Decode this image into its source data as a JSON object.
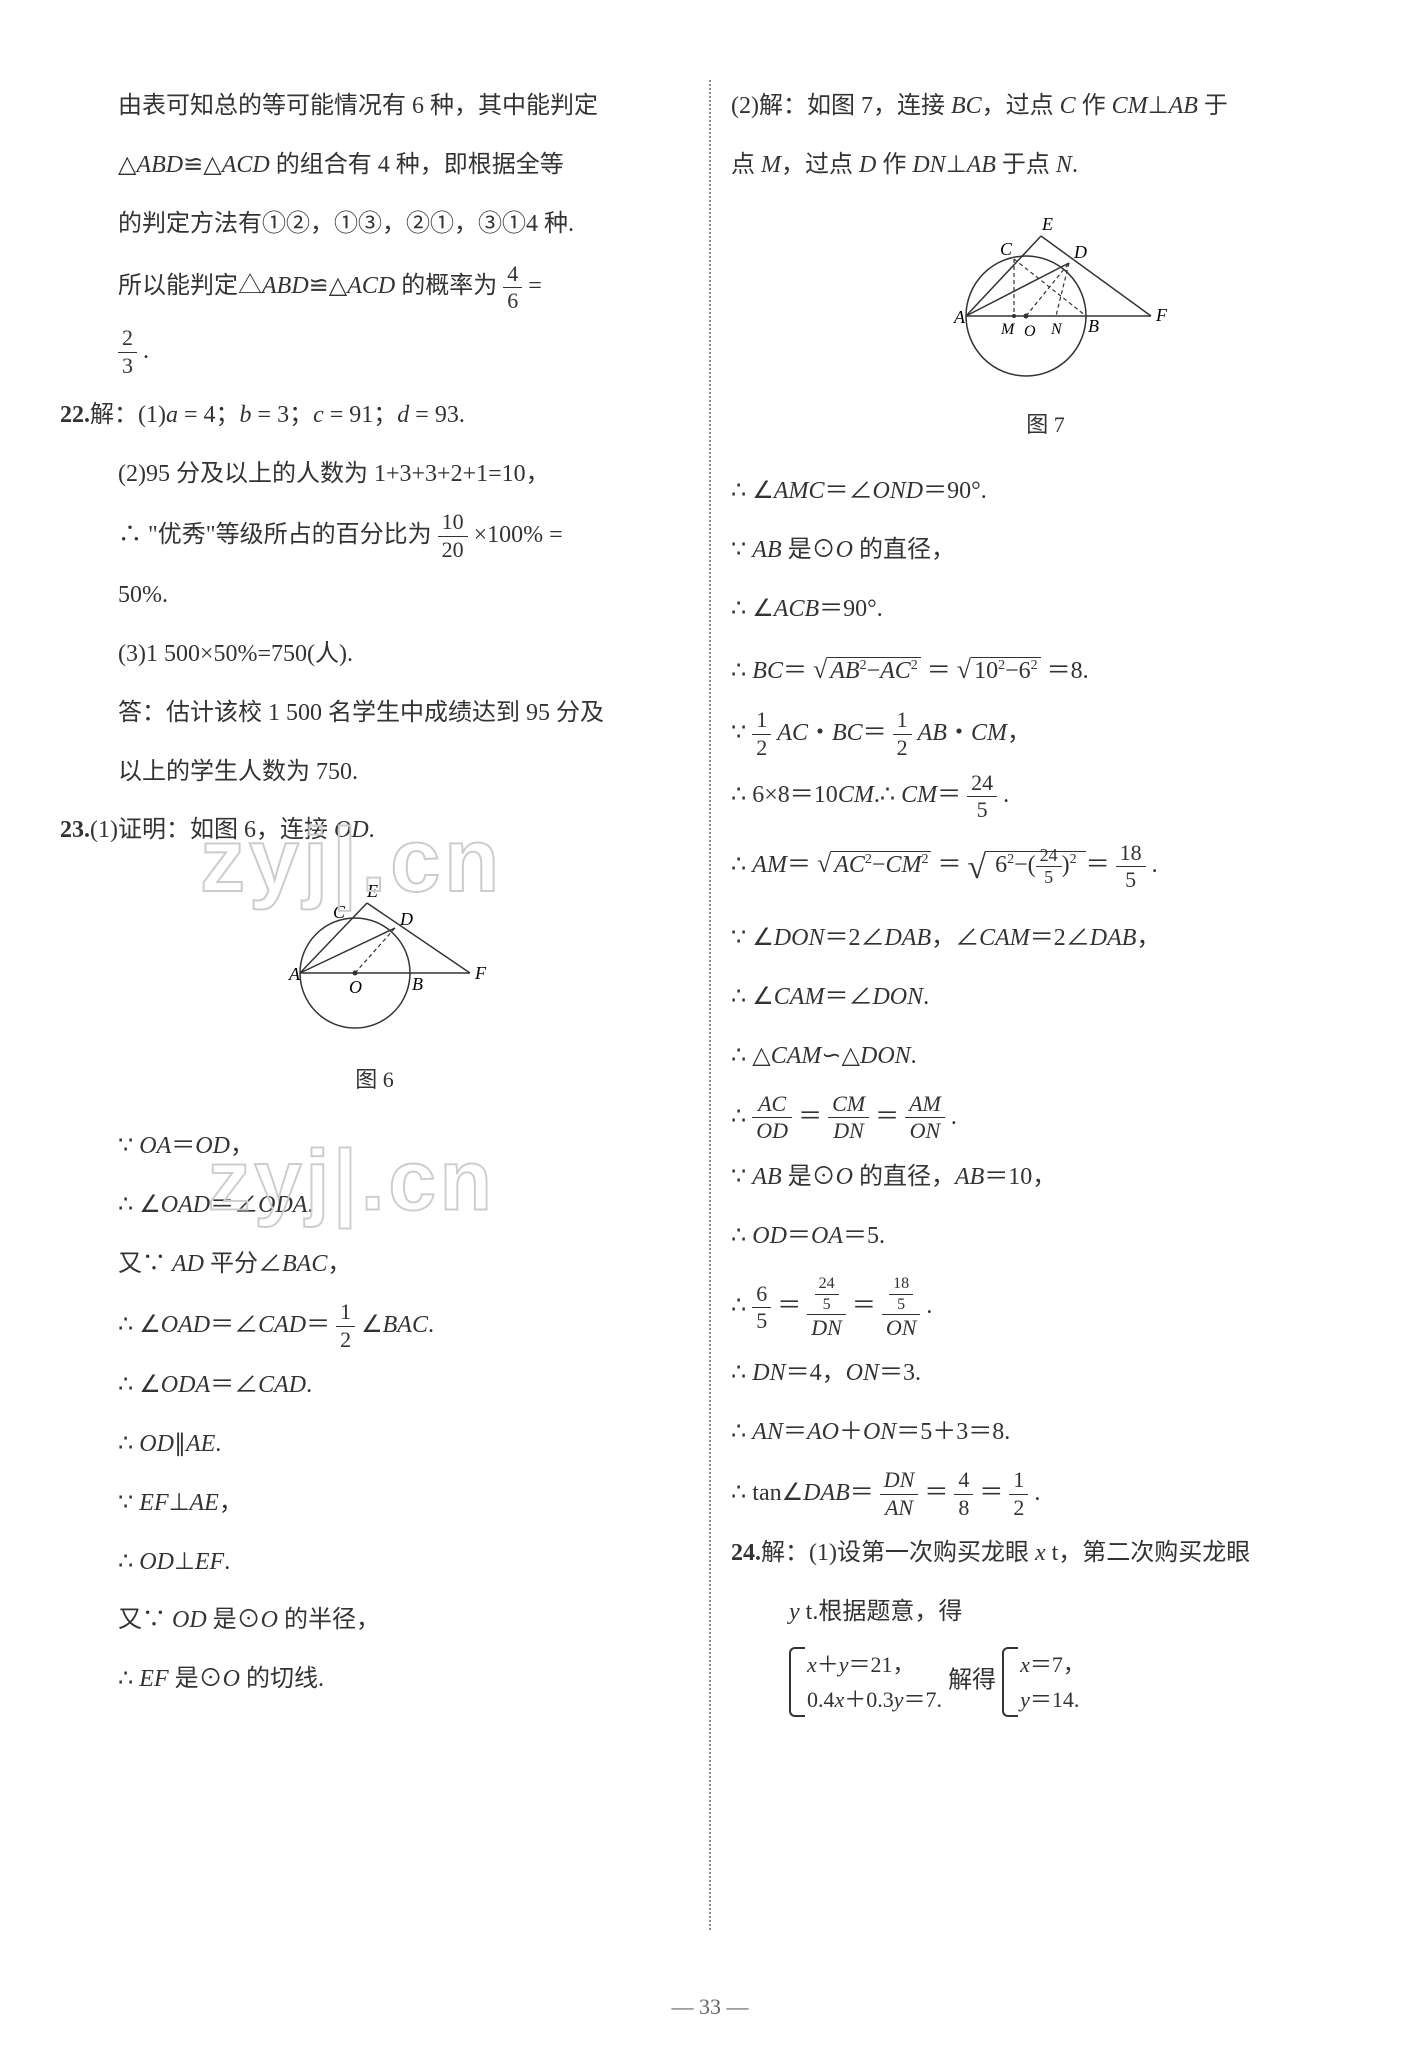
{
  "page_number": "— 33 —",
  "watermark_text": "zyj|.cn",
  "left_column": {
    "p1_l1": "由表可知总的等可能情况有 6 种，其中能判定",
    "p1_l2": "△<i>ABD</i>≌△<i>ACD</i> 的组合有 4 种，即根据全等",
    "p1_l3": "的判定方法有①②，①③，②①，③①4 种.",
    "p1_l4a": "所以能判定△<i>ABD</i>≌△<i>ACD</i> 的概率为",
    "p1_frac1_num": "4",
    "p1_frac1_den": "6",
    "p1_l4b": " =",
    "p1_frac2_num": "2",
    "p1_frac2_den": "3",
    "p1_l5": ".",
    "q22_label": "22.",
    "q22_l1": "解：(1)<i>a</i> = 4；<i>b</i> = 3；<i>c</i> = 91；<i>d</i> = 93.",
    "q22_l2": "(2)95 分及以上的人数为 1+3+3+2+1=10，",
    "q22_l3a": "∴ \"优秀\"等级所占的百分比为",
    "q22_frac1_num": "10",
    "q22_frac1_den": "20",
    "q22_l3b": "×100% =",
    "q22_l4": "50%.",
    "q22_l5": "(3)1 500×50%=750(人).",
    "q22_l6": "答：估计该校 1 500 名学生中成绩达到 95 分及",
    "q22_l7": "以上的学生人数为 750.",
    "q23_label": "23.",
    "q23_l1": "(1)证明：如图 6，连接 <i>OD</i>.",
    "fig6_caption": "图 6",
    "q23_l2": "∵ <i>OA</i>＝<i>OD</i>，",
    "q23_l3": "∴ ∠<i>OAD</i>＝∠<i>ODA</i>.",
    "q23_l4": "又∵ <i>AD</i> 平分∠<i>BAC</i>，",
    "q23_l5a": "∴ ∠<i>OAD</i>＝∠<i>CAD</i>＝",
    "q23_frac1_num": "1",
    "q23_frac1_den": "2",
    "q23_l5b": "∠<i>BAC</i>.",
    "q23_l6": "∴ ∠<i>ODA</i>＝∠<i>CAD</i>.",
    "q23_l7": "∴ <i>OD</i>∥<i>AE</i>.",
    "q23_l8": "∵ <i>EF</i>⊥<i>AE</i>，",
    "q23_l9": "∴ <i>OD</i>⊥<i>EF</i>.",
    "q23_l10": "又∵ <i>OD</i> 是⊙<i>O</i> 的半径，",
    "q23_l11": "∴ <i>EF</i> 是⊙<i>O</i> 的切线."
  },
  "right_column": {
    "r1_l1": "(2)解：如图 7，连接 <i>BC</i>，过点 <i>C</i> 作 <i>CM</i>⊥<i>AB</i> 于",
    "r1_l2": "点 <i>M</i>，过点 <i>D</i> 作 <i>DN</i>⊥<i>AB</i> 于点 <i>N</i>.",
    "fig7_caption": "图 7",
    "r2_l1": "∴ ∠<i>AMC</i>＝∠<i>OND</i>＝90°.",
    "r2_l2": "∵ <i>AB</i> 是⊙<i>O</i> 的直径，",
    "r2_l3": "∴ ∠<i>ACB</i>＝90°.",
    "r2_l4a": "∴ <i>BC</i>＝",
    "r2_l4_sqrt1": "<i>AB</i><sup>2</sup>−<i>AC</i><sup>2</sup>",
    "r2_l4b": "＝",
    "r2_l4_sqrt2": "10<sup>2</sup>−6<sup>2</sup>",
    "r2_l4c": "＝8.",
    "r2_l5a": "∵ ",
    "r2_frac1_num": "1",
    "r2_frac1_den": "2",
    "r2_l5b": "<i>AC</i>・<i>BC</i>＝",
    "r2_frac2_num": "1",
    "r2_frac2_den": "2",
    "r2_l5c": "<i>AB</i>・<i>CM</i>，",
    "r2_l6a": "∴ 6×8＝10<i>CM</i>.∴ <i>CM</i>＝",
    "r2_frac3_num": "24",
    "r2_frac3_den": "5",
    "r2_l6b": ".",
    "r2_l7a": "∴ <i>AM</i>＝",
    "r2_l7_sqrt1": "<i>AC</i><sup>2</sup>−<i>CM</i><sup>2</sup>",
    "r2_l7b": "＝",
    "r2_l7_sqrt2_outer": "6<sup>2</sup>−",
    "r2_l7_frac_num": "24",
    "r2_l7_frac_den": "5",
    "r2_l7_sqrt2_sup": "2",
    "r2_l7c": "＝",
    "r2_frac4_num": "18",
    "r2_frac4_den": "5",
    "r2_l7d": ".",
    "r2_l8": "∵ ∠<i>DON</i>＝2∠<i>DAB</i>，∠<i>CAM</i>＝2∠<i>DAB</i>，",
    "r2_l9": "∴ ∠<i>CAM</i>＝∠<i>DON</i>.",
    "r2_l10": "∴ △<i>CAM</i>∽△<i>DON</i>.",
    "r2_l11a": "∴ ",
    "r2_frac5a_num": "<i>AC</i>",
    "r2_frac5a_den": "<i>OD</i>",
    "r2_l11b": "＝",
    "r2_frac5b_num": "<i>CM</i>",
    "r2_frac5b_den": "<i>DN</i>",
    "r2_l11c": "＝",
    "r2_frac5c_num": "<i>AM</i>",
    "r2_frac5c_den": "<i>ON</i>",
    "r2_l11d": ".",
    "r2_l12": "∵ <i>AB</i> 是⊙<i>O</i> 的直径，<i>AB</i>＝10，",
    "r2_l13": "∴ <i>OD</i>＝<i>OA</i>＝5.",
    "r2_l14a": "∴ ",
    "r2_frac6a_num": "6",
    "r2_frac6a_den": "5",
    "r2_l14b": "＝",
    "r2_frac6b_num_num": "24",
    "r2_frac6b_num_den": "5",
    "r2_frac6b_den": "<i>DN</i>",
    "r2_l14c": "＝",
    "r2_frac6c_num_num": "18",
    "r2_frac6c_num_den": "5",
    "r2_frac6c_den": "<i>ON</i>",
    "r2_l14d": ".",
    "r2_l15": "∴ <i>DN</i>＝4，<i>ON</i>＝3.",
    "r2_l16": "∴ <i>AN</i>＝<i>AO</i>＋<i>ON</i>＝5＋3＝8.",
    "r2_l17a": "∴ tan∠<i>DAB</i>＝",
    "r2_frac7a_num": "<i>DN</i>",
    "r2_frac7a_den": "<i>AN</i>",
    "r2_l17b": "＝",
    "r2_frac7b_num": "4",
    "r2_frac7b_den": "8",
    "r2_l17c": "＝",
    "r2_frac7c_num": "1",
    "r2_frac7c_den": "2",
    "r2_l17d": ".",
    "q24_label": "24.",
    "q24_l1": "解：(1)设第一次购买龙眼 <i>x</i> t，第二次购买龙眼",
    "q24_l2": "<i>y</i> t.根据题意，得",
    "q24_sys1_l1": "<i>x</i>＋<i>y</i>＝21，",
    "q24_sys1_l2": "0.4<i>x</i>＋0.3<i>y</i>＝7.",
    "q24_l3": " 解得",
    "q24_sys2_l1": "<i>x</i>＝7，",
    "q24_sys2_l2": "<i>y</i>＝14."
  },
  "figure6": {
    "labels": {
      "A": "A",
      "B": "B",
      "C": "C",
      "D": "D",
      "E": "E",
      "F": "F",
      "O": "O"
    },
    "circle_stroke": "#333333",
    "line_stroke": "#333333",
    "dashed_stroke": "#333333"
  },
  "figure7": {
    "labels": {
      "A": "A",
      "B": "B",
      "C": "C",
      "D": "D",
      "E": "E",
      "F": "F",
      "M": "M",
      "N": "N",
      "O": "O"
    },
    "circle_stroke": "#333333",
    "line_stroke": "#333333",
    "dashed_stroke": "#333333"
  }
}
